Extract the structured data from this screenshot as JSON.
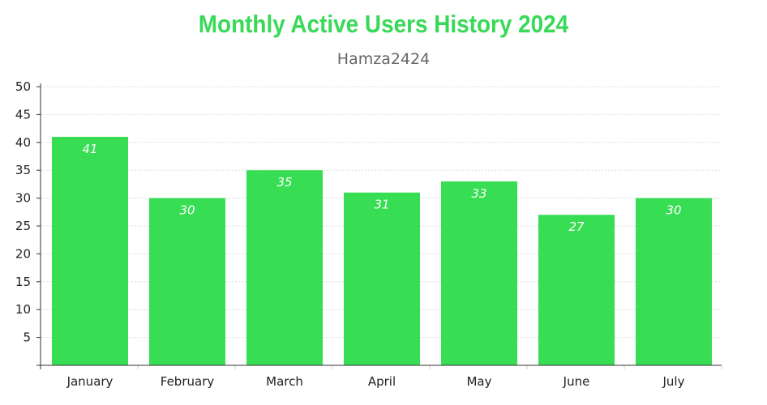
{
  "chart_data": {
    "type": "bar",
    "title": "Monthly Active Users History 2024",
    "subtitle": "Hamza2424",
    "categories": [
      "January",
      "February",
      "March",
      "April",
      "May",
      "June",
      "July"
    ],
    "values": [
      41,
      30,
      35,
      31,
      33,
      27,
      30
    ],
    "ylim": [
      0,
      50
    ],
    "yticks": [
      5,
      10,
      15,
      20,
      25,
      30,
      35,
      40,
      45,
      50
    ],
    "grid": true,
    "legend": "none",
    "bar_color": "#37dd52",
    "title_color": "#37d957"
  }
}
